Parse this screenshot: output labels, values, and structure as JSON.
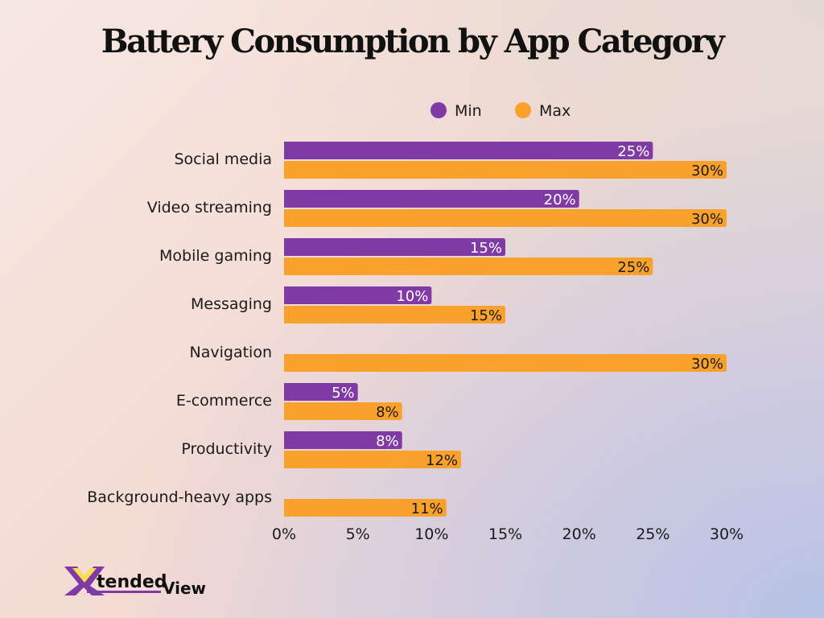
{
  "chart_data": {
    "type": "bar",
    "orientation": "horizontal",
    "title": "Battery Consumption by App Category",
    "categories": [
      "Social media",
      "Video streaming",
      "Mobile gaming",
      "Messaging",
      "Navigation",
      "E-commerce",
      "Productivity",
      "Background-heavy apps"
    ],
    "series": [
      {
        "name": "Min",
        "color": "#7f3aa6",
        "values": [
          25,
          20,
          15,
          10,
          null,
          5,
          8,
          null
        ]
      },
      {
        "name": "Max",
        "color": "#f9a12a",
        "values": [
          30,
          30,
          25,
          15,
          30,
          8,
          12,
          11
        ]
      }
    ],
    "xlim": [
      0,
      30
    ],
    "xticks": [
      "0%",
      "5%",
      "10%",
      "15%",
      "20%",
      "25%",
      "30%"
    ],
    "xtick_values": [
      0,
      5,
      10,
      15,
      20,
      25,
      30
    ],
    "value_suffix": "%",
    "grid": false,
    "legend": "top"
  },
  "logo": {
    "text": "XtendedView"
  }
}
